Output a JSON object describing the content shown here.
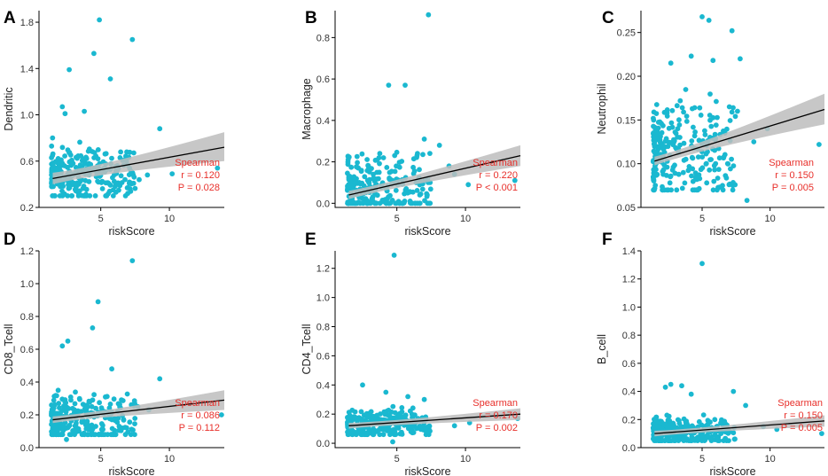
{
  "figure": {
    "background": "#ffffff"
  },
  "style": {
    "point_color": "#1ab8d0",
    "line_color": "#000000",
    "band_color": "#bdbdbd",
    "stat_color": "#e8302b",
    "axis_color": "#000000"
  },
  "chart_data": [
    {
      "panel": "A",
      "type": "scatter",
      "xlabel": "riskScore",
      "ylabel": "Dendritic",
      "xlim": [
        0.5,
        14
      ],
      "ylim": [
        0.2,
        1.9
      ],
      "xticks": [
        5,
        10
      ],
      "yticks": [
        0.2,
        0.6,
        1.0,
        1.4,
        1.8
      ],
      "ytick_labels": [
        "0.2",
        "0.6",
        "1.0",
        "1.4",
        "1.8"
      ],
      "fit": {
        "x": [
          1.5,
          14
        ],
        "y": [
          0.45,
          0.72
        ],
        "ci_lo": [
          0.4,
          0.6
        ],
        "ci_hi": [
          0.5,
          0.85
        ]
      },
      "stats": {
        "method": "Spearman",
        "r": "r = 0.120",
        "p": "P = 0.028"
      },
      "outliers": [
        [
          4.9,
          1.82
        ],
        [
          7.3,
          1.65
        ],
        [
          4.5,
          1.53
        ],
        [
          2.7,
          1.39
        ],
        [
          5.7,
          1.31
        ],
        [
          2.2,
          1.07
        ],
        [
          3.8,
          1.03
        ],
        [
          9.3,
          0.88
        ],
        [
          2.4,
          1.01
        ],
        [
          13.5,
          0.54
        ],
        [
          6.2,
          0.52
        ],
        [
          8.4,
          0.48
        ],
        [
          7.8,
          0.44
        ],
        [
          10.2,
          0.49
        ]
      ],
      "cluster": {
        "n": 260,
        "xmin": 1.4,
        "xmax": 7.5,
        "ymin": 0.3,
        "ymax": 0.8,
        "center": 0.48,
        "seed": 11
      }
    },
    {
      "panel": "B",
      "type": "scatter",
      "xlabel": "riskScore",
      "ylabel": "Macrophage",
      "xlim": [
        0.5,
        14
      ],
      "ylim": [
        -0.02,
        0.93
      ],
      "xticks": [
        5,
        10
      ],
      "yticks": [
        0.0,
        0.2,
        0.4,
        0.6,
        0.8
      ],
      "ytick_labels": [
        "0.0",
        "0.2",
        "0.4",
        "0.6",
        "0.8"
      ],
      "fit": {
        "x": [
          1.5,
          14
        ],
        "y": [
          0.04,
          0.23
        ],
        "ci_lo": [
          0.02,
          0.18
        ],
        "ci_hi": [
          0.06,
          0.28
        ]
      },
      "stats": {
        "method": "Spearman",
        "r": "r = 0.220",
        "p": "P < 0.001"
      },
      "outliers": [
        [
          7.3,
          0.91
        ],
        [
          5.6,
          0.57
        ],
        [
          4.4,
          0.57
        ],
        [
          8.1,
          0.28
        ],
        [
          7.0,
          0.31
        ],
        [
          13.6,
          0.11
        ],
        [
          9.2,
          0.14
        ],
        [
          10.2,
          0.09
        ],
        [
          8.8,
          0.18
        ],
        [
          6.5,
          0.24
        ]
      ],
      "cluster": {
        "n": 260,
        "xmin": 1.4,
        "xmax": 7.5,
        "ymin": 0.0,
        "ymax": 0.35,
        "center": 0.07,
        "seed": 23
      }
    },
    {
      "panel": "C",
      "type": "scatter",
      "xlabel": "riskScore",
      "ylabel": "Neutrophil",
      "xlim": [
        0.5,
        14
      ],
      "ylim": [
        0.05,
        0.275
      ],
      "xticks": [
        5,
        10
      ],
      "yticks": [
        0.05,
        0.1,
        0.15,
        0.2,
        0.25
      ],
      "ytick_labels": [
        "0.05",
        "0.10",
        "0.15",
        "0.20",
        "0.25"
      ],
      "fit": {
        "x": [
          1.5,
          14
        ],
        "y": [
          0.103,
          0.162
        ],
        "ci_lo": [
          0.098,
          0.145
        ],
        "ci_hi": [
          0.108,
          0.18
        ]
      },
      "stats": {
        "method": "Spearman",
        "r": "r = 0.150",
        "p": "P = 0.005"
      },
      "outliers": [
        [
          5.0,
          0.268
        ],
        [
          5.5,
          0.264
        ],
        [
          7.2,
          0.252
        ],
        [
          4.2,
          0.223
        ],
        [
          5.8,
          0.218
        ],
        [
          7.8,
          0.22
        ],
        [
          2.7,
          0.215
        ],
        [
          13.6,
          0.122
        ],
        [
          8.3,
          0.058
        ],
        [
          9.8,
          0.14
        ],
        [
          8.8,
          0.125
        ],
        [
          7.6,
          0.16
        ],
        [
          7.0,
          0.165
        ]
      ],
      "cluster": {
        "n": 260,
        "xmin": 1.4,
        "xmax": 7.5,
        "ymin": 0.07,
        "ymax": 0.19,
        "center": 0.11,
        "seed": 37
      }
    },
    {
      "panel": "D",
      "type": "scatter",
      "xlabel": "riskScore",
      "ylabel": "CD8_Tcell",
      "xlim": [
        0.5,
        14
      ],
      "ylim": [
        0.0,
        1.2
      ],
      "xticks": [
        5,
        10
      ],
      "yticks": [
        0.0,
        0.2,
        0.4,
        0.6,
        0.8,
        1.0,
        1.2
      ],
      "ytick_labels": [
        "0.0",
        "0.2",
        "0.4",
        "0.6",
        "0.8",
        "1.0",
        "1.2"
      ],
      "fit": {
        "x": [
          1.5,
          14
        ],
        "y": [
          0.17,
          0.29
        ],
        "ci_lo": [
          0.15,
          0.23
        ],
        "ci_hi": [
          0.19,
          0.35
        ]
      },
      "stats": {
        "method": "Spearman",
        "r": "r = 0.086",
        "p": "P = 0.112"
      },
      "outliers": [
        [
          7.3,
          1.14
        ],
        [
          4.8,
          0.89
        ],
        [
          4.4,
          0.73
        ],
        [
          2.6,
          0.65
        ],
        [
          2.2,
          0.62
        ],
        [
          5.8,
          0.48
        ],
        [
          9.3,
          0.42
        ],
        [
          13.8,
          0.2
        ],
        [
          2.5,
          0.05
        ],
        [
          8.5,
          0.23
        ],
        [
          7.7,
          0.25
        ]
      ],
      "cluster": {
        "n": 260,
        "xmin": 1.4,
        "xmax": 7.5,
        "ymin": 0.08,
        "ymax": 0.45,
        "center": 0.17,
        "seed": 53
      }
    },
    {
      "panel": "E",
      "type": "scatter",
      "xlabel": "riskScore",
      "ylabel": "CD4_Tcell",
      "xlim": [
        0.5,
        14
      ],
      "ylim": [
        -0.03,
        1.32
      ],
      "xticks": [
        5,
        10
      ],
      "yticks": [
        0.0,
        0.2,
        0.4,
        0.6,
        0.8,
        1.0,
        1.2
      ],
      "ytick_labels": [
        "0.0",
        "0.2",
        "0.4",
        "0.6",
        "0.8",
        "1.0",
        "1.2"
      ],
      "fit": {
        "x": [
          1.5,
          14
        ],
        "y": [
          0.12,
          0.2
        ],
        "ci_lo": [
          0.1,
          0.16
        ],
        "ci_hi": [
          0.14,
          0.24
        ]
      },
      "stats": {
        "method": "Spearman",
        "r": "r = 0.170",
        "p": "P = 0.002"
      },
      "outliers": [
        [
          4.8,
          1.29
        ],
        [
          2.5,
          0.4
        ],
        [
          4.2,
          0.35
        ],
        [
          5.8,
          0.32
        ],
        [
          7.0,
          0.3
        ],
        [
          13.8,
          0.17
        ],
        [
          4.7,
          0.01
        ],
        [
          9.2,
          0.12
        ],
        [
          10.3,
          0.14
        ]
      ],
      "cluster": {
        "n": 260,
        "xmin": 1.4,
        "xmax": 7.5,
        "ymin": 0.06,
        "ymax": 0.27,
        "center": 0.13,
        "seed": 71
      }
    },
    {
      "panel": "F",
      "type": "scatter",
      "xlabel": "riskScore",
      "ylabel": "B_cell",
      "xlim": [
        0.5,
        14
      ],
      "ylim": [
        0.0,
        1.4
      ],
      "xticks": [
        5,
        10
      ],
      "yticks": [
        0.0,
        0.2,
        0.4,
        0.6,
        0.8,
        1.0,
        1.2,
        1.4
      ],
      "ytick_labels": [
        "0.0",
        "0.2",
        "0.4",
        "0.6",
        "0.8",
        "1.0",
        "1.2",
        "1.4"
      ],
      "fit": {
        "x": [
          1.5,
          14
        ],
        "y": [
          0.1,
          0.19
        ],
        "ci_lo": [
          0.08,
          0.15
        ],
        "ci_hi": [
          0.12,
          0.23
        ]
      },
      "stats": {
        "method": "Spearman",
        "r": "r = 0.150",
        "p": "P = 0.005"
      },
      "outliers": [
        [
          5.0,
          1.31
        ],
        [
          2.7,
          0.45
        ],
        [
          2.3,
          0.43
        ],
        [
          3.5,
          0.44
        ],
        [
          4.2,
          0.38
        ],
        [
          7.3,
          0.4
        ],
        [
          13.8,
          0.1
        ],
        [
          9.5,
          0.15
        ],
        [
          10.5,
          0.13
        ],
        [
          8.2,
          0.3
        ]
      ],
      "cluster": {
        "n": 260,
        "xmin": 1.4,
        "xmax": 7.5,
        "ymin": 0.05,
        "ymax": 0.28,
        "center": 0.11,
        "seed": 89
      }
    }
  ]
}
